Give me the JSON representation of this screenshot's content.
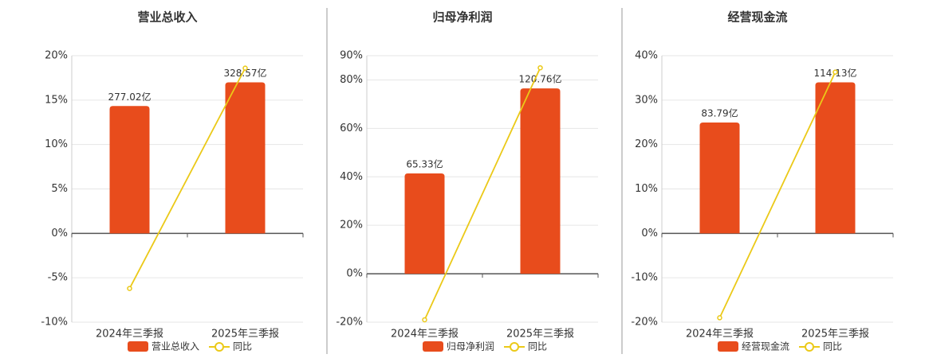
{
  "chart_data": [
    {
      "type": "bar-line",
      "title": "营业总收入",
      "categories": [
        "2024年三季报",
        "2025年三季报"
      ],
      "series": [
        {
          "name": "营业总收入",
          "type": "bar",
          "color": "#e84c1c",
          "values": [
            277.02,
            328.57
          ],
          "value_labels": [
            "277.02亿",
            "328.57亿"
          ]
        },
        {
          "name": "同比",
          "type": "line",
          "color": "#ebc918",
          "values": [
            -6.2,
            18.6
          ]
        }
      ],
      "ylim": [
        -10,
        20
      ],
      "yticks": [
        {
          "value": -10,
          "label": "-10%"
        },
        {
          "value": -5,
          "label": "-5%"
        },
        {
          "value": 0,
          "label": "0%"
        },
        {
          "value": 5,
          "label": "5%"
        },
        {
          "value": 10,
          "label": "10%"
        },
        {
          "value": 15,
          "label": "15%"
        },
        {
          "value": 20,
          "label": "20%"
        }
      ],
      "grid": true
    },
    {
      "type": "bar-line",
      "title": "归母净利润",
      "categories": [
        "2024年三季报",
        "2025年三季报"
      ],
      "series": [
        {
          "name": "归母净利润",
          "type": "bar",
          "color": "#e84c1c",
          "values": [
            65.33,
            120.76
          ],
          "value_labels": [
            "65.33亿",
            "120.76亿"
          ]
        },
        {
          "name": "同比",
          "type": "line",
          "color": "#ebc918",
          "values": [
            -19,
            85
          ]
        }
      ],
      "ylim": [
        -20,
        90
      ],
      "yticks": [
        {
          "value": -20,
          "label": "-20%"
        },
        {
          "value": 0,
          "label": "0%"
        },
        {
          "value": 20,
          "label": "20%"
        },
        {
          "value": 40,
          "label": "40%"
        },
        {
          "value": 60,
          "label": "60%"
        },
        {
          "value": 80,
          "label": "80%"
        },
        {
          "value": 90,
          "label": "90%"
        }
      ],
      "grid": true
    },
    {
      "type": "bar-line",
      "title": "经营现金流",
      "categories": [
        "2024年三季报",
        "2025年三季报"
      ],
      "series": [
        {
          "name": "经营现金流",
          "type": "bar",
          "color": "#e84c1c",
          "values": [
            83.79,
            114.13
          ],
          "value_labels": [
            "83.79亿",
            "114.13亿"
          ]
        },
        {
          "name": "同比",
          "type": "line",
          "color": "#ebc918",
          "values": [
            -19,
            36.3
          ]
        }
      ],
      "ylim": [
        -20,
        40
      ],
      "yticks": [
        {
          "value": -20,
          "label": "-20%"
        },
        {
          "value": -10,
          "label": "-10%"
        },
        {
          "value": 0,
          "label": "0%"
        },
        {
          "value": 10,
          "label": "10%"
        },
        {
          "value": 20,
          "label": "20%"
        },
        {
          "value": 30,
          "label": "30%"
        },
        {
          "value": 40,
          "label": "40%"
        }
      ],
      "grid": true
    }
  ]
}
